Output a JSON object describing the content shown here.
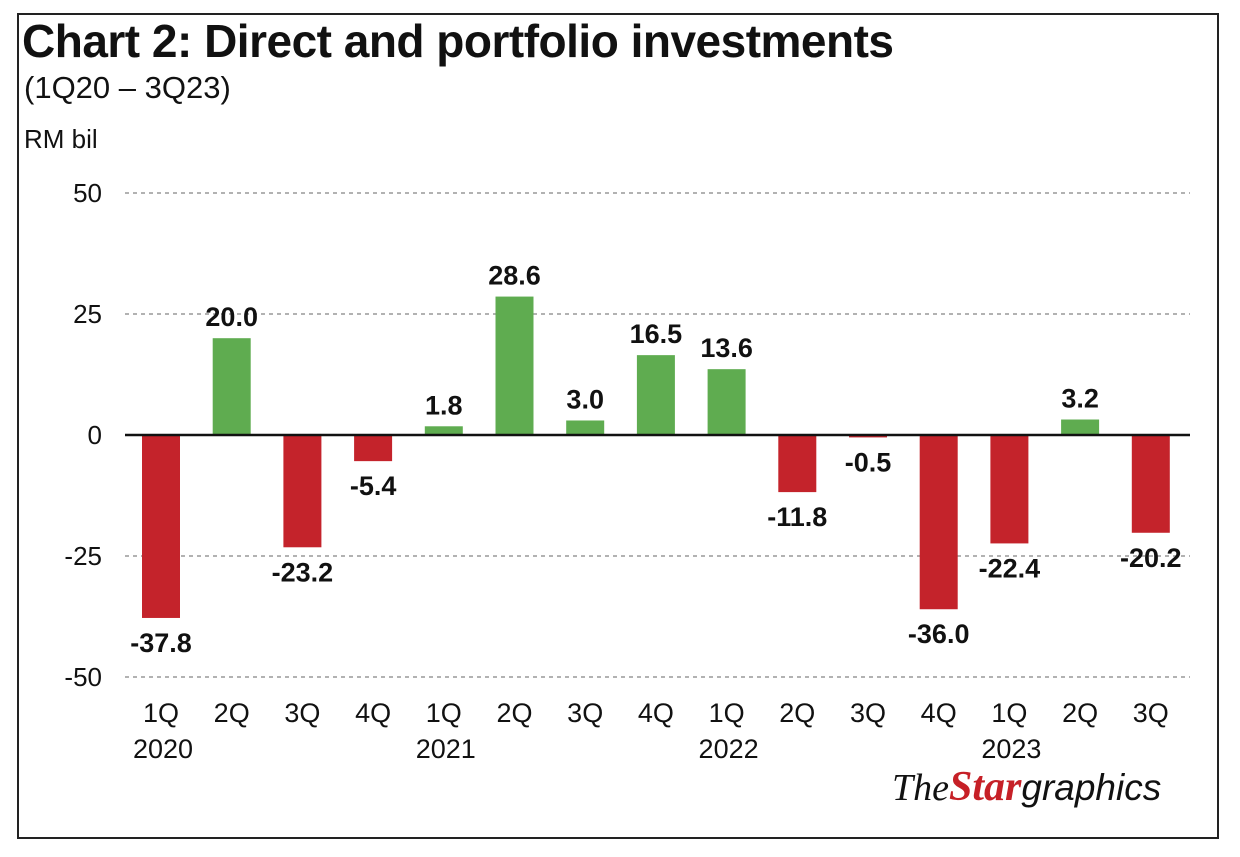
{
  "title": "Chart 2: Direct and portfolio investments",
  "subtitle": "(1Q20 – 3Q23)",
  "unit_label": "RM bil",
  "credit": {
    "the": "The",
    "star": "Star",
    "graphics": "graphics"
  },
  "colors": {
    "positive": "#5fac50",
    "negative": "#c4232b",
    "grid": "#999999",
    "axis": "#111111"
  },
  "chart_data": {
    "type": "bar",
    "title": "Chart 2: Direct and portfolio investments",
    "subtitle": "(1Q20 – 3Q23)",
    "ylabel": "RM bil",
    "ylim": [
      -50,
      50
    ],
    "yticks": [
      50,
      25,
      0,
      -25,
      -50
    ],
    "grid": true,
    "categories": [
      "1Q 2020",
      "2Q 2020",
      "3Q 2020",
      "4Q 2020",
      "1Q 2021",
      "2Q 2021",
      "3Q 2021",
      "4Q 2021",
      "1Q 2022",
      "2Q 2022",
      "3Q 2022",
      "4Q 2022",
      "1Q 2023",
      "2Q 2023",
      "3Q 2023"
    ],
    "quarter_labels": [
      "1Q",
      "2Q",
      "3Q",
      "4Q",
      "1Q",
      "2Q",
      "3Q",
      "4Q",
      "1Q",
      "2Q",
      "3Q",
      "4Q",
      "1Q",
      "2Q",
      "3Q"
    ],
    "year_labels": [
      "2020",
      "",
      "",
      "",
      "2021",
      "",
      "",
      "",
      "2022",
      "",
      "",
      "",
      "2023",
      "",
      ""
    ],
    "values": [
      -37.8,
      20.0,
      -23.2,
      -5.4,
      1.8,
      28.6,
      3.0,
      16.5,
      13.6,
      -11.8,
      -0.5,
      -36.0,
      -22.4,
      3.2,
      -20.2
    ],
    "value_labels": [
      "-37.8",
      "20.0",
      "-23.2",
      "-5.4",
      "1.8",
      "28.6",
      "3.0",
      "16.5",
      "13.6",
      "-11.8",
      "-0.5",
      "-36.0",
      "-22.4",
      "3.2",
      "-20.2"
    ]
  }
}
